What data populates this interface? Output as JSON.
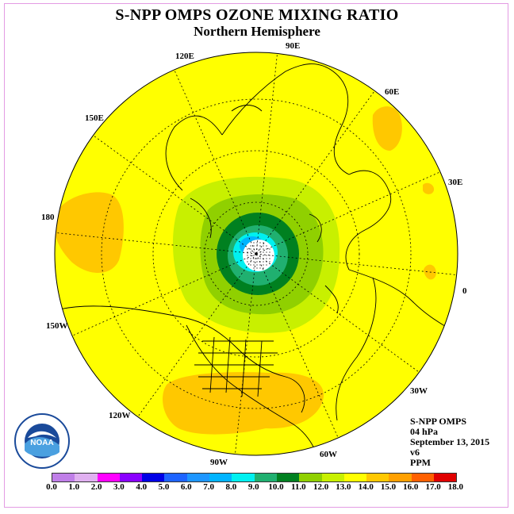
{
  "title": "S-NPP OMPS OZONE MIXING RATIO",
  "subtitle": "Northern Hemisphere",
  "info": [
    "S-NPP OMPS",
    "04 hPa",
    "September 13, 2015",
    "v6",
    "PPM"
  ],
  "logo_text": "NOAA",
  "longitude_labels": [
    "90E",
    "60E",
    "30E",
    "0",
    "30W",
    "60W",
    "90W",
    "120W",
    "150W",
    "180",
    "150E",
    "120E"
  ],
  "colorbar": {
    "ticks": [
      "0.0",
      "1.0",
      "2.0",
      "3.0",
      "4.0",
      "5.0",
      "6.0",
      "7.0",
      "8.0",
      "9.0",
      "10.0",
      "11.0",
      "12.0",
      "13.0",
      "14.0",
      "15.0",
      "16.0",
      "17.0",
      "18.0"
    ],
    "colors": [
      "#c07fe8",
      "#e0b0f0",
      "#ff00ff",
      "#8a00ff",
      "#0000e6",
      "#1e64ff",
      "#1e96ff",
      "#00b4ff",
      "#00f0f0",
      "#20b070",
      "#008020",
      "#90d000",
      "#c8f000",
      "#ffff00",
      "#ffc800",
      "#ffa000",
      "#ff6000",
      "#e00000",
      "#8b5a3c"
    ]
  },
  "map": {
    "projection": "north polar stereographic",
    "pole_color": "#ffffff",
    "background_color": "#ffff00"
  }
}
